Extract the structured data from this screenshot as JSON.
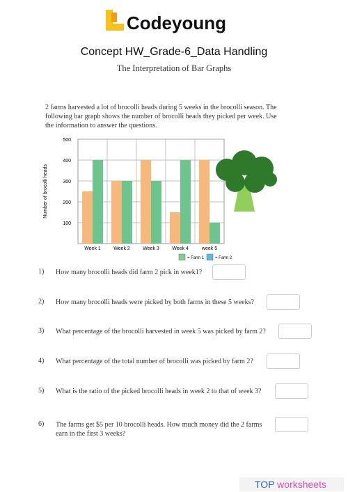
{
  "header": {
    "logo": "Codeyoung",
    "title": "Concept HW_Grade-6_Data Handling",
    "subtitle": "The Interpretation of Bar Graphs"
  },
  "intro": "2 farms harvested a lot of brocolli heads during 5 weeks in the brocolli season. The following bar graph shows the number of brocolli heads they picked per week. Use the information to answer the questions.",
  "chart": {
    "type": "bar",
    "categories": [
      "Week 1",
      "Week 2",
      "Week 3",
      "Week 4",
      "week 5"
    ],
    "series": [
      {
        "name": "= Farm 1",
        "color": "#f6b87b",
        "legend_color": "#86cc8e",
        "values": [
          250,
          300,
          400,
          150,
          400
        ]
      },
      {
        "name": "= Farm 2",
        "color": "#6dc48c",
        "legend_color": "#5cb9e0",
        "values": [
          400,
          300,
          300,
          400,
          100
        ]
      }
    ],
    "y_label": "Number of brocolli heads",
    "ylim": [
      0,
      500
    ],
    "yticks": [
      100,
      200,
      300,
      400,
      500
    ],
    "grid": true
  },
  "questions": [
    {
      "number": "1)",
      "text": "How many brocolli heads did farm 2 pick in week1?"
    },
    {
      "number": "2)",
      "text": "How many brocolli heads were picked by both farms in these 5 weeks?"
    },
    {
      "number": "3)",
      "text": "What percentage of the brocolli harvested in week 5 was picked by farm 2?"
    },
    {
      "number": "4)",
      "text": "What percentage of the total number of brocolli was picked by farm 2?"
    },
    {
      "number": "5)",
      "text": "What is the ratio of the picked brocolli heads in week 2 to that of week 3?"
    },
    {
      "number": "6)",
      "text": "The farms get $5 per 10 brocolli heads. How much money did the 2 farms earn in the first 3 weeks?"
    }
  ],
  "footer": {
    "brand": "TOP",
    "rest": "worksheets"
  }
}
